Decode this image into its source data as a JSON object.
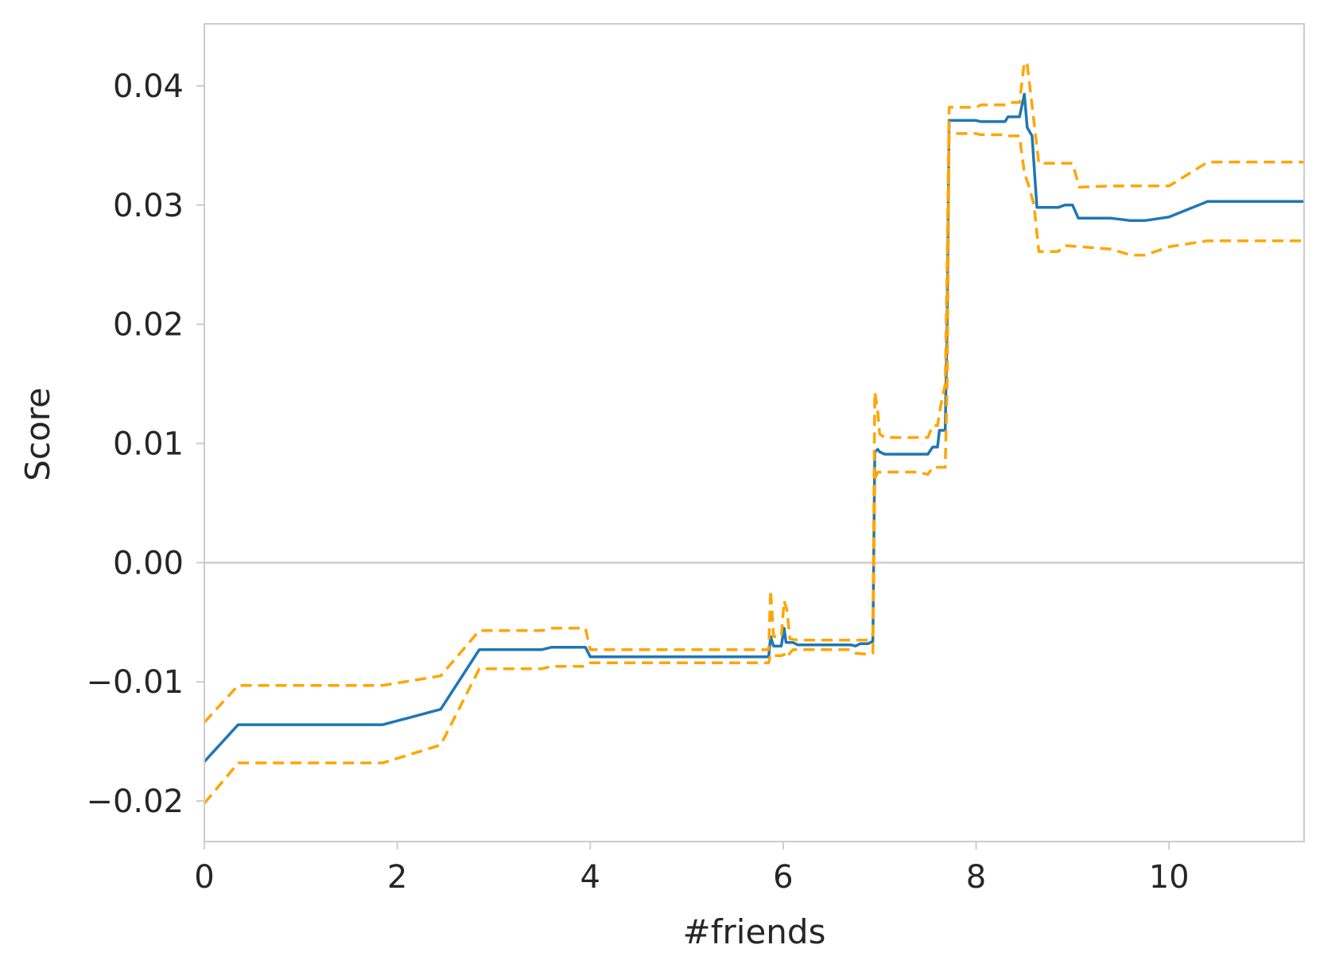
{
  "chart_data": {
    "type": "line",
    "xlabel": "#friends",
    "ylabel": "Score",
    "xlim": [
      0,
      11.4
    ],
    "ylim": [
      -0.0234,
      0.0452
    ],
    "grid": false,
    "reference_line": 0.0,
    "x_ticks": [
      0,
      2,
      4,
      6,
      8,
      10
    ],
    "x_tick_labels": [
      "0",
      "2",
      "4",
      "6",
      "8",
      "10"
    ],
    "y_ticks": [
      -0.02,
      -0.01,
      0.0,
      0.01,
      0.02,
      0.03,
      0.04
    ],
    "y_tick_labels": [
      "−0.02",
      "−0.01",
      "0.00",
      "0.01",
      "0.02",
      "0.03",
      "0.04"
    ],
    "colors": {
      "mean": "#1f77b4",
      "bounds": "#ffa500",
      "reference": "#d3d3d3",
      "spine": "#cccccc",
      "text": "#262626"
    },
    "series": [
      {
        "role": "mean",
        "style": "solid",
        "points": [
          [
            0,
            -0.0167
          ],
          [
            0.35,
            -0.0136
          ],
          [
            1.85,
            -0.0136
          ],
          [
            2.45,
            -0.0123
          ],
          [
            2.85,
            -0.0073
          ],
          [
            3.5,
            -0.0073
          ],
          [
            3.6,
            -0.0071
          ],
          [
            3.95,
            -0.0071
          ],
          [
            4.0,
            -0.0079
          ],
          [
            5.85,
            -0.0079
          ],
          [
            5.87,
            -0.0062
          ],
          [
            5.9,
            -0.007
          ],
          [
            5.98,
            -0.007
          ],
          [
            6.01,
            -0.0055
          ],
          [
            6.03,
            -0.0067
          ],
          [
            6.1,
            -0.0067
          ],
          [
            6.15,
            -0.0069
          ],
          [
            6.7,
            -0.0069
          ],
          [
            6.75,
            -0.007
          ],
          [
            6.8,
            -0.0068
          ],
          [
            6.88,
            -0.0068
          ],
          [
            6.93,
            -0.0066
          ],
          [
            6.95,
            0.0093
          ],
          [
            6.98,
            0.0095
          ],
          [
            7.0,
            0.0093
          ],
          [
            7.05,
            0.0091
          ],
          [
            7.5,
            0.0091
          ],
          [
            7.55,
            0.0097
          ],
          [
            7.6,
            0.0097
          ],
          [
            7.62,
            0.0111
          ],
          [
            7.68,
            0.0111
          ],
          [
            7.7,
            0.02
          ],
          [
            7.72,
            0.0371
          ],
          [
            8.0,
            0.0371
          ],
          [
            8.05,
            0.037
          ],
          [
            8.3,
            0.037
          ],
          [
            8.33,
            0.0374
          ],
          [
            8.45,
            0.0374
          ],
          [
            8.5,
            0.0393
          ],
          [
            8.53,
            0.0365
          ],
          [
            8.58,
            0.0358
          ],
          [
            8.63,
            0.0298
          ],
          [
            8.85,
            0.0298
          ],
          [
            8.92,
            0.03
          ],
          [
            9.0,
            0.03
          ],
          [
            9.06,
            0.0289
          ],
          [
            9.4,
            0.0289
          ],
          [
            9.6,
            0.0287
          ],
          [
            9.75,
            0.0287
          ],
          [
            10.0,
            0.029
          ],
          [
            10.4,
            0.0303
          ],
          [
            11.4,
            0.0303
          ]
        ]
      },
      {
        "role": "upper",
        "style": "dashed",
        "points": [
          [
            0,
            -0.0134
          ],
          [
            0.35,
            -0.0103
          ],
          [
            1.85,
            -0.0103
          ],
          [
            2.45,
            -0.0095
          ],
          [
            2.85,
            -0.0057
          ],
          [
            3.5,
            -0.0057
          ],
          [
            3.6,
            -0.0055
          ],
          [
            3.95,
            -0.0055
          ],
          [
            4.0,
            -0.0073
          ],
          [
            5.85,
            -0.0073
          ],
          [
            5.87,
            -0.0023
          ],
          [
            5.9,
            -0.0062
          ],
          [
            5.98,
            -0.0062
          ],
          [
            6.01,
            -0.0032
          ],
          [
            6.04,
            -0.004
          ],
          [
            6.07,
            -0.0064
          ],
          [
            6.15,
            -0.0065
          ],
          [
            6.88,
            -0.0065
          ],
          [
            6.93,
            -0.006
          ],
          [
            6.95,
            0.0143
          ],
          [
            6.98,
            0.0127
          ],
          [
            7.0,
            0.0108
          ],
          [
            7.05,
            0.0105
          ],
          [
            7.5,
            0.0105
          ],
          [
            7.55,
            0.0115
          ],
          [
            7.6,
            0.0115
          ],
          [
            7.63,
            0.013
          ],
          [
            7.68,
            0.015
          ],
          [
            7.7,
            0.025
          ],
          [
            7.72,
            0.0382
          ],
          [
            8.0,
            0.0382
          ],
          [
            8.05,
            0.0384
          ],
          [
            8.3,
            0.0384
          ],
          [
            8.35,
            0.0386
          ],
          [
            8.45,
            0.0386
          ],
          [
            8.5,
            0.042
          ],
          [
            8.53,
            0.0418
          ],
          [
            8.6,
            0.037
          ],
          [
            8.65,
            0.0335
          ],
          [
            8.85,
            0.0335
          ],
          [
            9.0,
            0.0335
          ],
          [
            9.07,
            0.0315
          ],
          [
            9.4,
            0.0316
          ],
          [
            9.75,
            0.0316
          ],
          [
            10.0,
            0.0316
          ],
          [
            10.4,
            0.0336
          ],
          [
            11.4,
            0.0336
          ]
        ]
      },
      {
        "role": "lower",
        "style": "dashed",
        "points": [
          [
            0,
            -0.0202
          ],
          [
            0.35,
            -0.0168
          ],
          [
            1.85,
            -0.0168
          ],
          [
            2.45,
            -0.0153
          ],
          [
            2.85,
            -0.0089
          ],
          [
            3.5,
            -0.0089
          ],
          [
            3.6,
            -0.0087
          ],
          [
            3.95,
            -0.0087
          ],
          [
            4.0,
            -0.0084
          ],
          [
            5.85,
            -0.0084
          ],
          [
            5.87,
            -0.0077
          ],
          [
            5.9,
            -0.0078
          ],
          [
            5.98,
            -0.0078
          ],
          [
            6.01,
            -0.0077
          ],
          [
            6.03,
            -0.008
          ],
          [
            6.1,
            -0.0073
          ],
          [
            6.7,
            -0.0073
          ],
          [
            6.75,
            -0.0076
          ],
          [
            6.88,
            -0.0077
          ],
          [
            6.93,
            -0.0076
          ],
          [
            6.95,
            0.007
          ],
          [
            6.98,
            0.0076
          ],
          [
            7.0,
            0.0076
          ],
          [
            7.4,
            0.0076
          ],
          [
            7.5,
            0.0074
          ],
          [
            7.55,
            0.008
          ],
          [
            7.68,
            0.008
          ],
          [
            7.7,
            0.015
          ],
          [
            7.72,
            0.036
          ],
          [
            8.0,
            0.036
          ],
          [
            8.05,
            0.0359
          ],
          [
            8.3,
            0.0359
          ],
          [
            8.33,
            0.0358
          ],
          [
            8.45,
            0.0358
          ],
          [
            8.5,
            0.0327
          ],
          [
            8.55,
            0.0315
          ],
          [
            8.6,
            0.03
          ],
          [
            8.65,
            0.0261
          ],
          [
            8.85,
            0.0261
          ],
          [
            8.92,
            0.0266
          ],
          [
            9.4,
            0.0263
          ],
          [
            9.6,
            0.0258
          ],
          [
            9.75,
            0.0258
          ],
          [
            10.0,
            0.0265
          ],
          [
            10.4,
            0.027
          ],
          [
            11.4,
            0.027
          ]
        ]
      }
    ]
  }
}
